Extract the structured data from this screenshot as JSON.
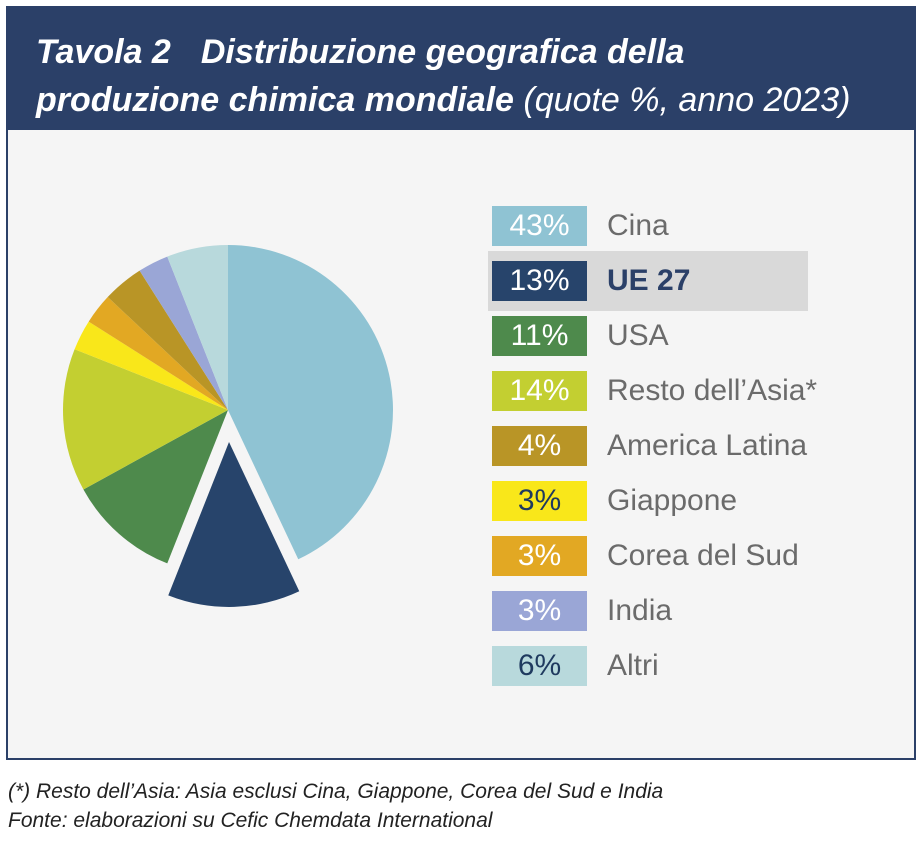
{
  "header": {
    "table_label": "Tavola 2",
    "title_line1": "Distribuzione geografica della",
    "title_line2": "produzione chimica mondiale",
    "title_paren": "(quote %, anno 2023)"
  },
  "chart_data": {
    "type": "pie",
    "legend_position": "right",
    "exploded": "UE 27",
    "slices": [
      {
        "label": "Cina",
        "value": 43,
        "value_label": "43%",
        "color": "#8fc3d3",
        "text_color": "#ffffff"
      },
      {
        "label": "UE 27",
        "value": 13,
        "value_label": "13%",
        "color": "#27446b",
        "text_color": "#ffffff"
      },
      {
        "label": "USA",
        "value": 11,
        "value_label": "11%",
        "color": "#4e8a4c",
        "text_color": "#ffffff"
      },
      {
        "label": "Resto dell’Asia*",
        "value": 14,
        "value_label": "14%",
        "color": "#c3cf31",
        "text_color": "#ffffff"
      },
      {
        "label": "America Latina",
        "value": 4,
        "value_label": "4%",
        "color": "#b99526",
        "text_color": "#ffffff"
      },
      {
        "label": "Giappone",
        "value": 3,
        "value_label": "3%",
        "color": "#f9e71a",
        "text_color": "#1f3a5f"
      },
      {
        "label": "Corea del Sud",
        "value": 3,
        "value_label": "3%",
        "color": "#e2a823",
        "text_color": "#ffffff"
      },
      {
        "label": "India",
        "value": 3,
        "value_label": "3%",
        "color": "#9aa6d6",
        "text_color": "#ffffff"
      },
      {
        "label": "Altri",
        "value": 6,
        "value_label": "6%",
        "color": "#b8d9dc",
        "text_color": "#1f3a5f"
      }
    ],
    "pie_order": [
      0,
      1,
      2,
      3,
      5,
      6,
      4,
      7,
      8
    ]
  },
  "footnotes": {
    "note": "(*) Resto dell’Asia: Asia esclusi Cina, Giappone, Corea del Sud e India",
    "source": "Fonte: elaborazioni su Cefic Chemdata International"
  }
}
